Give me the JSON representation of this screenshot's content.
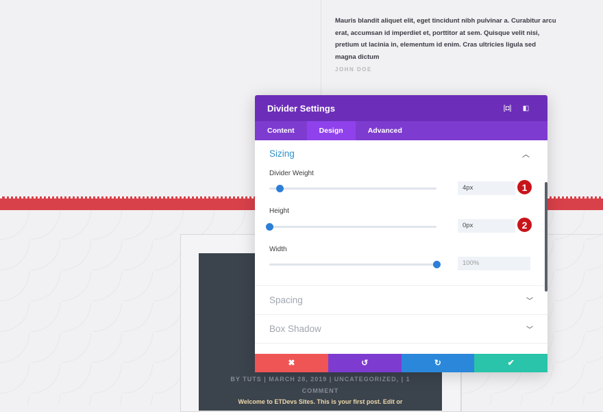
{
  "testimonial": {
    "text": "Mauris blandit aliquet elit, eget tincidunt nibh pulvinar a. Curabitur arcu erat, accumsan id imperdiet et, porttitor at sem. Quisque velit nisi, pretium ut lacinia in, elementum id enim. Cras ultricies ligula sed magna dictum",
    "author": "JOHN DOE"
  },
  "post": {
    "meta": "BY TUTS | MARCH 28, 2019 | UNCATEGORIZED, | 1 COMMENT",
    "excerpt": "Welcome to ETDevs Sites. This is your first post. Edit or"
  },
  "modal": {
    "title": "Divider Settings",
    "icons": [
      "focus-icon",
      "sidebar-layout-icon"
    ],
    "tabs": [
      "Content",
      "Design",
      "Advanced"
    ],
    "active_tab": "Design",
    "sizing": {
      "title": "Sizing",
      "fields": [
        {
          "label": "Divider Weight",
          "value": "4px",
          "slider": 0.06,
          "badge": "1"
        },
        {
          "label": "Height",
          "value": "0px",
          "slider": 0,
          "badge": "2"
        },
        {
          "label": "Width",
          "value": "100%",
          "slider": 1
        }
      ]
    },
    "sections": [
      "Spacing",
      "Box Shadow"
    ],
    "buttons": {
      "cancel": "✖",
      "undo": "↺",
      "redo": "↻",
      "save": "✔"
    },
    "colors": {
      "header": "#6c2eb9",
      "cancel": "#ef5555",
      "undo": "#7e3bd0",
      "redo": "#2b87da",
      "save": "#29c4a9",
      "divider": "#d9414a"
    }
  }
}
